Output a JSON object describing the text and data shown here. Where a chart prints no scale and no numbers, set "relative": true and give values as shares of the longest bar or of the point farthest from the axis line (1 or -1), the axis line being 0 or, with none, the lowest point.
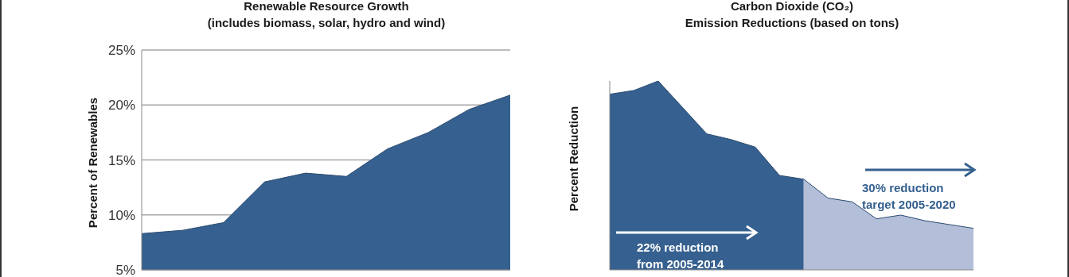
{
  "chart_data": [
    {
      "type": "area",
      "title": "Renewable Resource Growth",
      "subtitle": "(includes biomass, solar, hydro and wind)",
      "ylabel": "Percent of Renewables",
      "categories": [
        null,
        null,
        null,
        null,
        null,
        null,
        null,
        null,
        null,
        null
      ],
      "series": [
        {
          "color": "#35608f",
          "values": [
            8.3,
            8.6,
            9.3,
            13.0,
            13.8,
            13.5,
            16.0,
            17.5,
            19.6,
            20.9
          ]
        }
      ],
      "ylim": [
        5,
        25
      ],
      "yticks": [
        {
          "value": 5,
          "label": "5%"
        },
        {
          "value": 10,
          "label": "10%"
        },
        {
          "value": 15,
          "label": "15%"
        },
        {
          "value": 20,
          "label": "20%"
        },
        {
          "value": 25,
          "label": "25%"
        }
      ],
      "grid": "y",
      "tick_labels": "y"
    },
    {
      "type": "area",
      "title": "Carbon Dioxide (CO₂)",
      "subtitle": "Emission Reductions (based on tons)",
      "ylabel": "Percent Reduction",
      "relative": true,
      "categories": [
        null,
        null,
        null,
        null,
        null,
        null,
        null,
        null,
        null,
        null,
        null,
        null,
        null,
        null,
        null,
        null
      ],
      "series": [
        {
          "color": "#35608f",
          "values": [
            0.93,
            0.95,
            1,
            0.86,
            0.72,
            0.69,
            0.65,
            0.5,
            0.48,
            null,
            null,
            null,
            null,
            null,
            null,
            null
          ]
        },
        {
          "color": "#b3bed8",
          "values": [
            null,
            null,
            null,
            null,
            null,
            null,
            null,
            null,
            0.48,
            0.38,
            0.36,
            0.27,
            0.29,
            0.26,
            0.24,
            0.22
          ]
        }
      ],
      "annotations": [
        "22% reduction from 2005-2014",
        "30% reduction target 2005-2020"
      ],
      "tick_labels": false
    }
  ]
}
